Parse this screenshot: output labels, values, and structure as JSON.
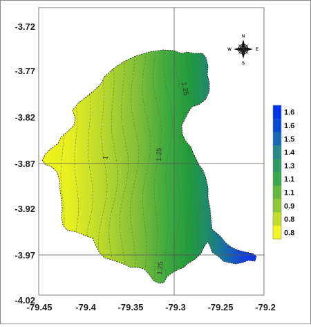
{
  "map": {
    "y_ticks": [
      "-3.72",
      "-3.77",
      "-3.82",
      "-3.87",
      "-3.92",
      "-3.97",
      "-4.02"
    ],
    "x_ticks": [
      "-79.45",
      "-79.4",
      "-79.35",
      "-79.3",
      "-79.25",
      "-79.2"
    ],
    "contour_labels": [
      "1.25",
      "1.25",
      "1",
      "1.25"
    ],
    "compass": {
      "n": "N",
      "s": "S",
      "e": "E",
      "w": "W"
    }
  },
  "legend": {
    "labels": [
      "1.6",
      "1.6",
      "1.5",
      "1.4",
      "1.3",
      "1.1",
      "1.1",
      "0.9",
      "0.8",
      "0.8"
    ],
    "colors": [
      "#0033ee",
      "#0a4bd6",
      "#1a66b8",
      "#268a8a",
      "#2e9a66",
      "#3aa848",
      "#62b83c",
      "#8fc834",
      "#c4dc2a",
      "#f5f522"
    ]
  },
  "colors": {
    "blue": "#1a3fd0",
    "teal": "#1f7e7a",
    "green": "#2f9a3e",
    "yellowgreen": "#9ccc33",
    "yellow": "#eef21e"
  }
}
